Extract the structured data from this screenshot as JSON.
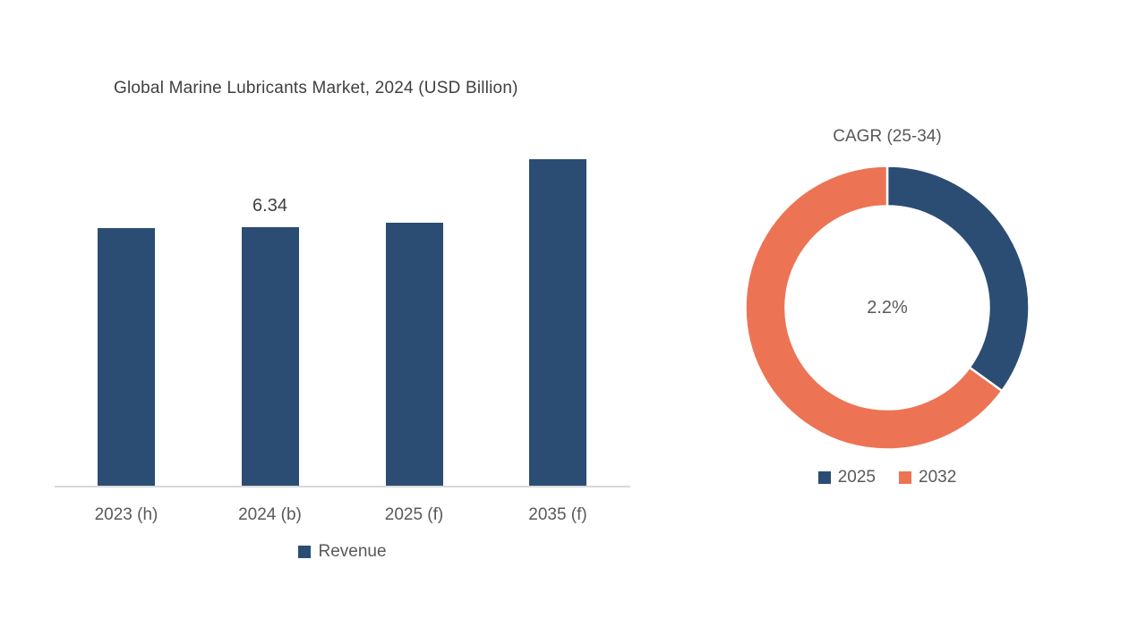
{
  "page": {
    "background": "#ffffff"
  },
  "colors": {
    "bar_blue": "#2B4D74",
    "accent_orange": "#EC7454",
    "axis_line": "#D9D9D9",
    "title_text": "#404040",
    "label_text": "#595959"
  },
  "chart_data": [
    {
      "type": "bar",
      "title": "Global Marine Lubricants Market, 2024 (USD Billion)",
      "series_name": "Revenue",
      "categories": [
        "2023 (h)",
        "2024 (b)",
        "2025 (f)",
        "2035 (f)"
      ],
      "values": [
        6.32,
        6.34,
        6.45,
        8.01
      ],
      "data_labels": [
        null,
        "6.34",
        null,
        null
      ],
      "bar_color": "#2B4D74",
      "xlabel": "",
      "ylabel": "",
      "ylim": [
        0,
        8.7
      ],
      "gridlines": false,
      "y_axis_visible": false,
      "legend_position": "bottom"
    },
    {
      "type": "pie",
      "donut": true,
      "title": "CAGR (25-34)",
      "center_label": "2.2%",
      "start_angle_deg": 0,
      "slices": [
        {
          "label": "2025",
          "share_pct": 35,
          "color": "#2B4D74"
        },
        {
          "label": "2032",
          "share_pct": 65,
          "color": "#EC7454"
        }
      ],
      "legend_position": "bottom"
    }
  ]
}
